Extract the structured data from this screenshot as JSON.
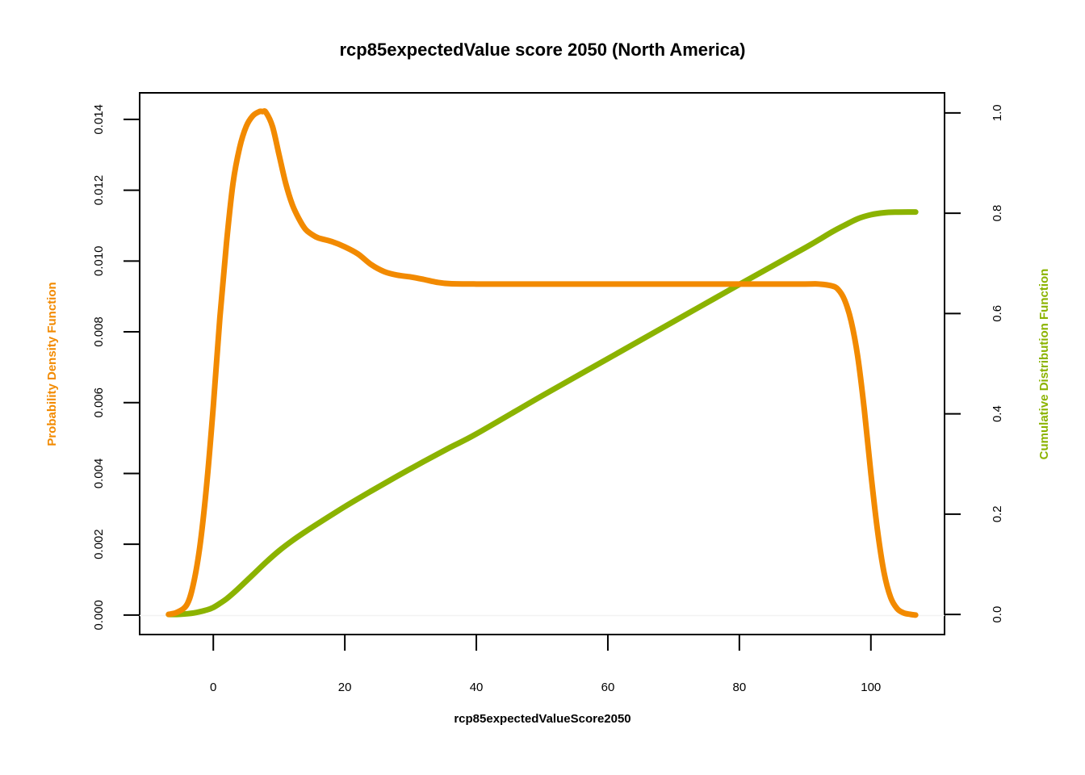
{
  "chart_data": {
    "type": "line",
    "title": "rcp85expectedValue score 2050 (North America)",
    "xlabel": "rcp85expectedValueScore2050",
    "ylabel_left": "Probability Density Function",
    "ylabel_right": "Cumulative Distribution Function",
    "xlim": [
      -11.2,
      111.2
    ],
    "ylim_left": [
      -0.00055,
      0.01475
    ],
    "ylim_right": [
      -0.04,
      1.04
    ],
    "x_ticks": [
      0,
      20,
      40,
      60,
      80,
      100
    ],
    "y_ticks_left": [
      0,
      0.002,
      0.004,
      0.006,
      0.008,
      0.01,
      0.012,
      0.014
    ],
    "y_ticks_right": [
      0,
      0.2,
      0.4,
      0.6,
      0.8,
      1
    ],
    "x_tick_labels": [
      "0",
      "20",
      "40",
      "60",
      "80",
      "100"
    ],
    "y_tick_labels_left": [
      "0.000",
      "0.002",
      "0.004",
      "0.006",
      "0.008",
      "0.010",
      "0.012",
      "0.014"
    ],
    "y_tick_labels_right": [
      "0.0",
      "0.2",
      "0.4",
      "0.6",
      "0.8",
      "1.0"
    ],
    "grid": false,
    "colors": {
      "pdf": "#F28A00",
      "cdf": "#8BB300",
      "axis": "#000000"
    },
    "series": [
      {
        "axis": "left",
        "x": [
          -6.8,
          -5.5,
          -4,
          -3,
          -2,
          -1,
          0,
          1,
          2,
          3,
          4,
          5,
          6,
          7,
          7.5,
          8,
          9,
          10,
          11,
          12,
          13,
          14,
          15,
          16,
          18,
          20,
          22,
          24,
          26,
          28,
          30,
          32,
          34,
          36,
          40,
          50,
          60,
          70,
          80,
          90,
          92,
          94,
          95,
          96,
          97,
          98,
          99,
          100,
          101,
          102,
          103,
          104,
          105,
          106,
          106.8
        ],
        "y": [
          2e-05,
          8e-05,
          0.0003,
          0.0009,
          0.002,
          0.0037,
          0.0059,
          0.0084,
          0.0105,
          0.0122,
          0.0132,
          0.0138,
          0.0141,
          0.01422,
          0.01422,
          0.0142,
          0.0138,
          0.013,
          0.0122,
          0.0116,
          0.0112,
          0.0109,
          0.01075,
          0.01065,
          0.01055,
          0.0104,
          0.0102,
          0.0099,
          0.0097,
          0.0096,
          0.00955,
          0.00948,
          0.0094,
          0.00936,
          0.00935,
          0.00935,
          0.00935,
          0.00935,
          0.00935,
          0.00935,
          0.00935,
          0.0093,
          0.0092,
          0.0089,
          0.0083,
          0.0073,
          0.0058,
          0.004,
          0.0024,
          0.0012,
          0.0005,
          0.00018,
          6e-05,
          2e-05,
          0.0
        ]
      },
      {
        "axis": "right",
        "x": [
          -6.8,
          -5,
          -3,
          -1,
          0,
          1,
          2,
          3,
          4,
          6,
          8,
          10,
          12,
          14,
          16,
          20,
          24,
          28,
          32,
          36,
          40,
          50,
          60,
          70,
          80,
          90,
          94,
          96,
          98,
          100,
          102,
          104,
          106,
          106.8
        ],
        "y": [
          0.0,
          0.0005,
          0.003,
          0.009,
          0.014,
          0.022,
          0.031,
          0.042,
          0.054,
          0.079,
          0.104,
          0.127,
          0.147,
          0.165,
          0.182,
          0.215,
          0.246,
          0.276,
          0.305,
          0.333,
          0.36,
          0.436,
          0.51,
          0.584,
          0.658,
          0.731,
          0.762,
          0.776,
          0.789,
          0.797,
          0.801,
          0.8022,
          0.8024,
          0.8024
        ]
      }
    ]
  }
}
